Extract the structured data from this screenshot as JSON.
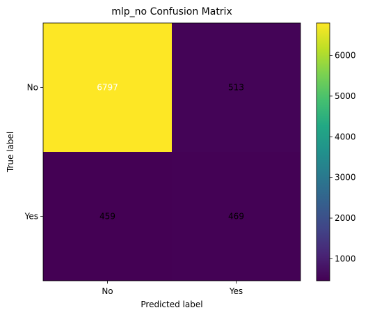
{
  "chart_data": {
    "type": "heatmap",
    "title": "mlp_no Confusion Matrix",
    "xlabel": "Predicted label",
    "ylabel": "True label",
    "x_categories": [
      "No",
      "Yes"
    ],
    "y_categories": [
      "No",
      "Yes"
    ],
    "values": [
      [
        6797,
        513
      ],
      [
        459,
        469
      ]
    ],
    "colormap": "viridis",
    "colorbar": {
      "range": [
        459,
        6797
      ],
      "ticks": [
        1000,
        2000,
        3000,
        4000,
        5000,
        6000
      ]
    },
    "cell_text_colors": {
      "light": "#ffffff",
      "dark": "#000000"
    }
  }
}
